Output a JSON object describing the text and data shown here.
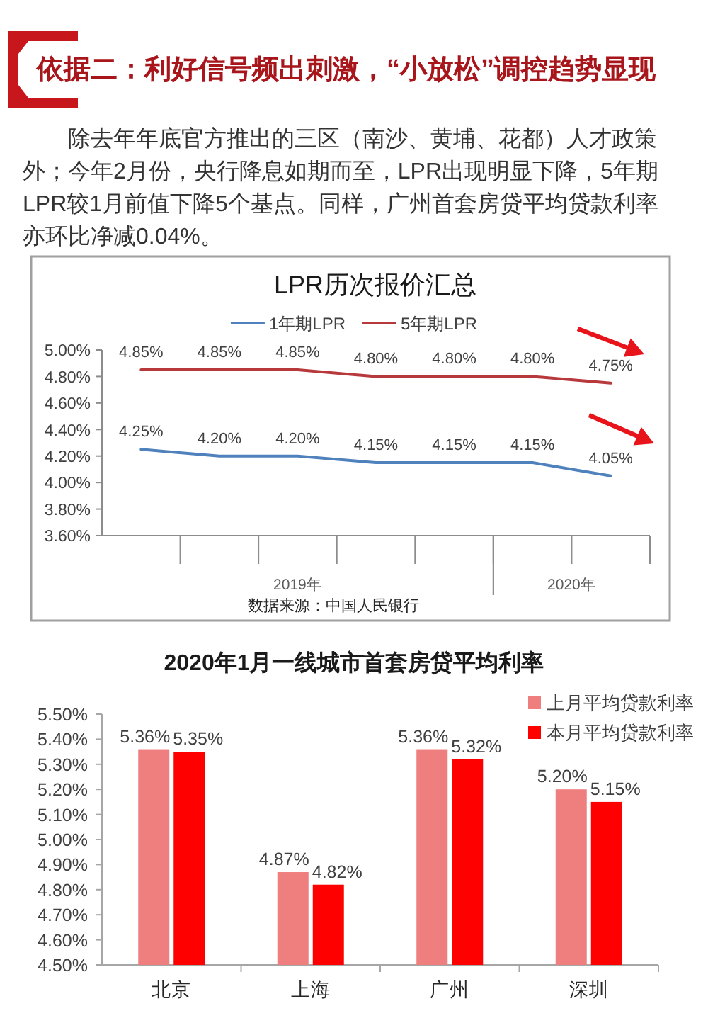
{
  "chart_data": [
    {
      "type": "other",
      "title": "依据二：利好信号频出刺激，“小放松”调控趋势显现",
      "annotations": [
        "除去年年底官方推出的三区（南沙、黄埔、花都）人才政策外；今年2月份，央行降息如期而至，LPR出现明显下降，5年期LPR较1月前值下降5个基点。同样，广州首套房贷平均贷款利率亦环比净减0.04%。"
      ]
    },
    {
      "type": "line",
      "title": "LPR历次报价汇总",
      "categories": [
        null,
        null,
        null,
        null,
        null,
        null,
        null
      ],
      "series": [
        {
          "name": "1年期LPR",
          "color": "#4f81bd",
          "values": [
            4.25,
            4.2,
            4.2,
            4.15,
            4.15,
            4.15,
            4.05
          ],
          "value_labels": [
            "4.25%",
            "4.20%",
            "4.20%",
            "4.15%",
            "4.15%",
            "4.15%",
            "4.05%"
          ]
        },
        {
          "name": "5年期LPR",
          "color": "#b8393c",
          "values": [
            4.85,
            4.85,
            4.85,
            4.8,
            4.8,
            4.8,
            4.75
          ],
          "value_labels": [
            "4.85%",
            "4.85%",
            "4.85%",
            "4.80%",
            "4.80%",
            "4.80%",
            "4.75%"
          ]
        }
      ],
      "ylim": [
        3.6,
        5.0
      ],
      "yticks": [
        {
          "value": 3.6,
          "label": "3.60%"
        },
        {
          "value": 3.8,
          "label": "3.80%"
        },
        {
          "value": 4.0,
          "label": "4.00%"
        },
        {
          "value": 4.2,
          "label": "4.20%"
        },
        {
          "value": 4.4,
          "label": "4.40%"
        },
        {
          "value": 4.6,
          "label": "4.60%"
        },
        {
          "value": 4.8,
          "label": "4.80%"
        },
        {
          "value": 5.0,
          "label": "5.00%"
        }
      ],
      "legend": "top",
      "annotations": [
        "2019年",
        "2020年",
        "数据来源：中国人民银行"
      ]
    },
    {
      "type": "bar",
      "title": "2020年1月一线城市首套房贷平均利率",
      "categories": [
        "北京",
        "上海",
        "广州",
        "深圳"
      ],
      "series": [
        {
          "name": "上月平均贷款利率",
          "color": "#ef7f7f",
          "values": [
            5.36,
            4.87,
            5.36,
            5.2
          ],
          "value_labels": [
            "5.36%",
            "4.87%",
            "5.36%",
            "5.20%"
          ]
        },
        {
          "name": "本月平均贷款利率",
          "color": "#ff0000",
          "values": [
            5.35,
            4.82,
            5.32,
            5.15
          ],
          "value_labels": [
            "5.35%",
            "4.82%",
            "5.32%",
            "5.15%"
          ]
        }
      ],
      "ylim": [
        4.5,
        5.5
      ],
      "yticks": [
        {
          "value": 4.5,
          "label": "4.50%"
        },
        {
          "value": 4.6,
          "label": "4.60%"
        },
        {
          "value": 4.7,
          "label": "4.70%"
        },
        {
          "value": 4.8,
          "label": "4.80%"
        },
        {
          "value": 4.9,
          "label": "4.90%"
        },
        {
          "value": 5.0,
          "label": "5.00%"
        },
        {
          "value": 5.1,
          "label": "5.10%"
        },
        {
          "value": 5.2,
          "label": "5.20%"
        },
        {
          "value": 5.3,
          "label": "5.30%"
        },
        {
          "value": 5.4,
          "label": "5.40%"
        },
        {
          "value": 5.5,
          "label": "5.50%"
        }
      ],
      "legend": "top right"
    }
  ]
}
